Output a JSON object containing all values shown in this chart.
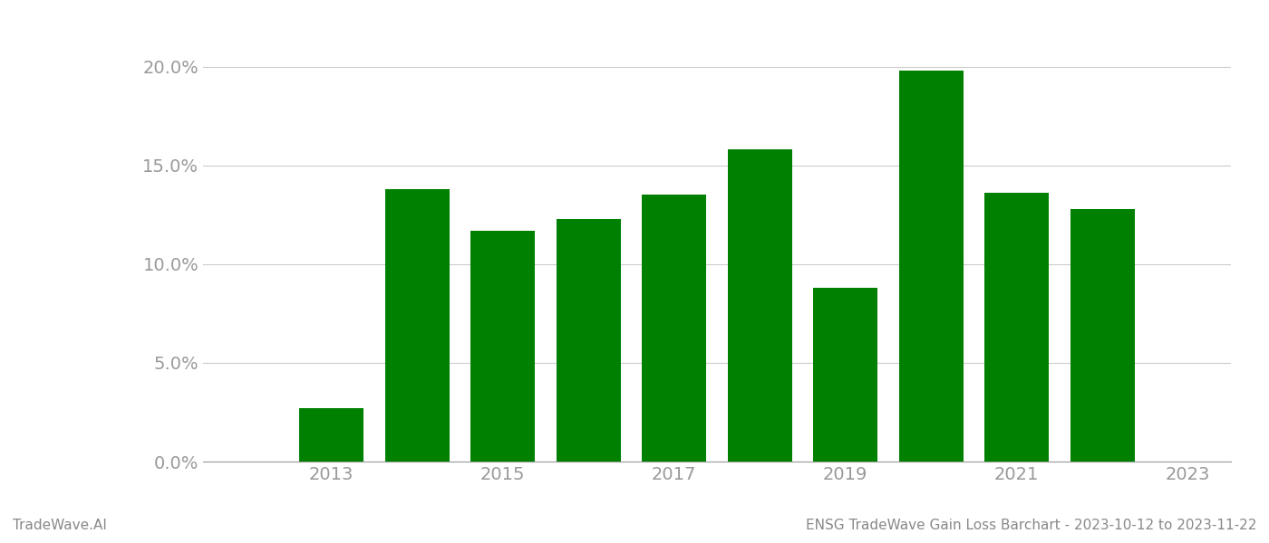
{
  "years": [
    2013,
    2014,
    2015,
    2016,
    2017,
    2018,
    2019,
    2020,
    2021,
    2022
  ],
  "values": [
    0.027,
    0.138,
    0.117,
    0.123,
    0.135,
    0.158,
    0.088,
    0.198,
    0.136,
    0.128
  ],
  "bar_color": "#008000",
  "background_color": "#ffffff",
  "ylim": [
    0,
    0.22
  ],
  "yticks": [
    0.0,
    0.05,
    0.1,
    0.15,
    0.2
  ],
  "xtick_positions": [
    2013,
    2015,
    2017,
    2019,
    2021,
    2023
  ],
  "xtick_labels": [
    "2013",
    "2015",
    "2017",
    "2019",
    "2021",
    "2023"
  ],
  "xlim": [
    2011.5,
    2023.5
  ],
  "footer_left": "TradeWave.AI",
  "footer_right": "ENSG TradeWave Gain Loss Barchart - 2023-10-12 to 2023-11-22",
  "grid_color": "#cccccc",
  "tick_label_color": "#999999",
  "footer_color": "#888888",
  "bar_width": 0.75,
  "tick_labelsize": 14,
  "footer_fontsize": 11
}
